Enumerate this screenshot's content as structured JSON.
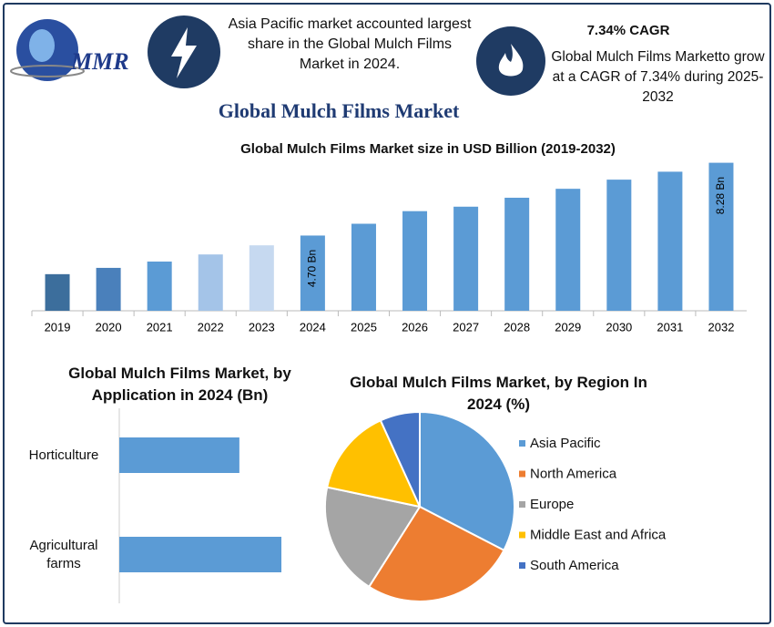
{
  "header": {
    "logo": "MMR",
    "highlight_1": "Asia Pacific market accounted largest share in the Global Mulch Films Market in 2024.",
    "highlight_2_title": "7.34% CAGR",
    "highlight_2": "Global Mulch Films Marketto grow at a CAGR of 7.34% during 2025-2032",
    "title": "Global Mulch Films Market"
  },
  "chart_data": [
    {
      "type": "bar",
      "title": "Global Mulch Films Market size in USD Billion (2019-2032)",
      "categories": [
        "2019",
        "2020",
        "2021",
        "2022",
        "2023",
        "2024",
        "2025",
        "2026",
        "2027",
        "2028",
        "2029",
        "2030",
        "2031",
        "2032"
      ],
      "values": [
        2.8,
        3.11,
        3.42,
        3.77,
        4.22,
        4.7,
        5.28,
        5.9,
        6.12,
        6.56,
        7.0,
        7.45,
        7.84,
        8.28
      ],
      "value_labels": [
        null,
        null,
        null,
        null,
        null,
        "4.70 Bn",
        null,
        null,
        null,
        null,
        null,
        null,
        null,
        "8.28 Bn"
      ],
      "colors": [
        "#3c6e9c",
        "#4a80bb",
        "#5b9bd5",
        "#a4c4e8",
        "#c6d9f0",
        "#5b9bd5",
        "#5b9bd5",
        "#5b9bd5",
        "#5b9bd5",
        "#5b9bd5",
        "#5b9bd5",
        "#5b9bd5",
        "#5b9bd5",
        "#5b9bd5"
      ],
      "ylim": [
        1,
        8.8
      ]
    },
    {
      "type": "hbar",
      "title": "Global Mulch Films Market, by Application in 2024 (Bn)",
      "categories": [
        "Horticulture",
        "Agricultural farms"
      ],
      "values": [
        2.0,
        2.7
      ],
      "color": "#5b9bd5",
      "xlim": [
        0,
        3.2
      ]
    },
    {
      "type": "pie",
      "title": "Global Mulch Films Market, by Region In 2024 (%)",
      "categories": [
        "Asia Pacific",
        "North America",
        "Europe",
        "Middle East and Africa",
        "South America"
      ],
      "values": [
        32.6,
        26.4,
        19.3,
        14.9,
        6.8
      ],
      "colors": [
        "#5b9bd5",
        "#ed7d31",
        "#a5a5a5",
        "#ffc000",
        "#4472c4"
      ],
      "legend": "right"
    }
  ]
}
